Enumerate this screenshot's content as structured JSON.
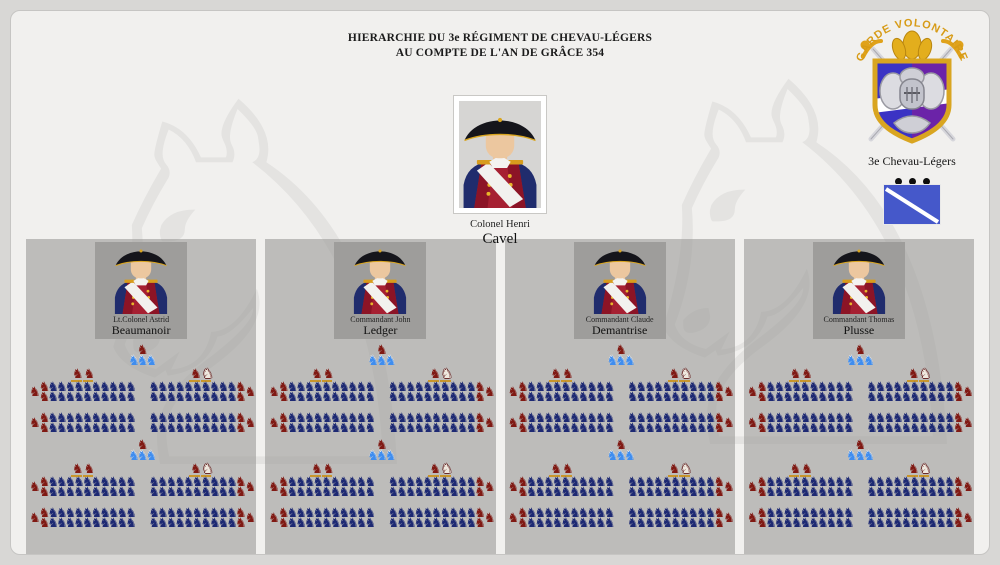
{
  "page": {
    "title_line1": "HIERARCHIE DU 3e RÉGIMENT DE CHEVAU-LÉGERS",
    "title_line2": "AU COMPTE DE L'AN DE GRÂCE  354"
  },
  "crest": {
    "arc_text": "GARDE VOLONTAIRE",
    "unit_label": "3e Chevau-Légers",
    "rank_dots": 3,
    "colors": {
      "arc_text_gold": "#d79b16",
      "shield_left_blue": "#3b33c4",
      "shield_right_purple": "#6b23a8",
      "shield_band_white": "#ffffff",
      "shield_border_gold": "#d9a520",
      "flag_blue": "#4558ca",
      "flag_stripe": "#ffffff"
    }
  },
  "colonel": {
    "rank_line": "Colonel Henri",
    "name": "Cavel"
  },
  "companies": [
    {
      "officer_rank_line": "Lt.Colonel Astrid",
      "officer_name": "Beaumanoir"
    },
    {
      "officer_rank_line": "Commandant John",
      "officer_name": "Ledger"
    },
    {
      "officer_rank_line": "Commandant Claude",
      "officer_name": "Demantrise"
    },
    {
      "officer_rank_line": "Commandant Thomas",
      "officer_name": "Plusse"
    }
  ],
  "troops": {
    "icon": "cavalier-chess-knight",
    "glyph": "♞",
    "colors": {
      "trooper": "#1d2973",
      "leader": "#801913",
      "musician": "#3f8def",
      "officer_white": "#efe9df",
      "officer_base": "#c9962b"
    },
    "halves_per_company": 2,
    "half": {
      "leader_icons": 1,
      "musician_icons": 3,
      "columns": 2,
      "blocks_per_column": 2,
      "rows_per_block": 2,
      "troopers_per_row": 10,
      "row_leaders_per_row": 1,
      "flank_leaders_per_block": 1,
      "left_column_officers": [
        "leader",
        "leader"
      ],
      "right_column_officers": [
        "leader",
        "white"
      ]
    },
    "derived_totals_per_company": {
      "troopers": 160,
      "red_leaders": 32,
      "white_officers": 2,
      "musicians": 6,
      "total_icons": 200
    }
  }
}
